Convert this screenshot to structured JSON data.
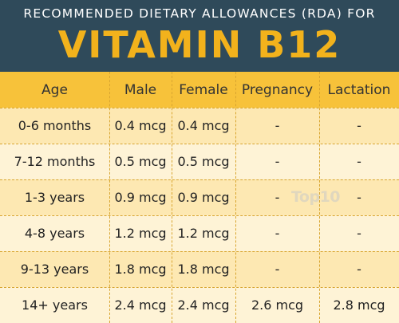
{
  "header": {
    "subtitle": "RECOMMENDED DIETARY ALLOWANCES (RDA) FOR",
    "title": "VITAMIN B12"
  },
  "table": {
    "columns": [
      "Age",
      "Male",
      "Female",
      "Pregnancy",
      "Lactation"
    ],
    "rows": [
      [
        "0-6 months",
        "0.4 mcg",
        "0.4 mcg",
        "-",
        "-"
      ],
      [
        "7-12 months",
        "0.5 mcg",
        "0.5 mcg",
        "-",
        "-"
      ],
      [
        "1-3 years",
        "0.9 mcg",
        "0.9 mcg",
        "-",
        "-"
      ],
      [
        "4-8 years",
        "1.2 mcg",
        "1.2 mcg",
        "-",
        "-"
      ],
      [
        "9-13 years",
        "1.8 mcg",
        "1.8 mcg",
        "-",
        "-"
      ],
      [
        "14+ years",
        "2.4 mcg",
        "2.4 mcg",
        "2.6 mcg",
        "2.8 mcg"
      ]
    ]
  },
  "watermark": "Top10",
  "colors": {
    "header_bg": "#2f4a5a",
    "title": "#f2b21c",
    "table_header_bg": "#f7c23a",
    "row_light": "#fef3d6",
    "row_dark": "#fde8b2"
  }
}
